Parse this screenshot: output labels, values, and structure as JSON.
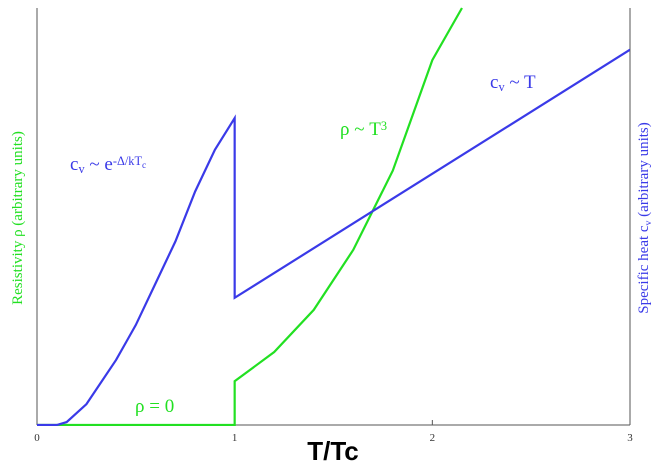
{
  "chart_data": {
    "type": "line",
    "xlabel": "T/Tc",
    "ylabel": [
      {
        "text": "Resistivity ρ (arbitrary units)"
      }
    ],
    "y2label": [
      {
        "text": "Specific heat c"
      },
      {
        "text": "v",
        "shift": "sub"
      },
      {
        "text": " (arbitrary units)"
      }
    ],
    "xlim": [
      0,
      3
    ],
    "ylim": [
      0,
      1
    ],
    "y2lim": [
      0,
      1
    ],
    "xticks": [
      0,
      1,
      2,
      3
    ],
    "series": [
      {
        "color": "#22e022",
        "axis": "y",
        "x": [
          0,
          1,
          1,
          1.2,
          1.4,
          1.6,
          1.8,
          2.0,
          2.15
        ],
        "values": [
          0,
          0,
          0.105,
          0.175,
          0.276,
          0.42,
          0.61,
          0.875,
          1.0
        ]
      },
      {
        "color": "#3a3ae8",
        "axis": "y2",
        "x": [
          0,
          0.1,
          0.15,
          0.25,
          0.4,
          0.5,
          0.6,
          0.7,
          0.8,
          0.9,
          1.0,
          1.0,
          3.0
        ],
        "values": [
          0,
          0,
          0.007,
          0.05,
          0.156,
          0.24,
          0.34,
          0.44,
          0.56,
          0.66,
          0.736,
          0.305,
          0.9
        ]
      }
    ],
    "annotations": [
      {
        "series": 1,
        "parts": [
          {
            "text": "c"
          },
          {
            "text": "v",
            "shift": "sub"
          },
          {
            "text": " ~ e"
          },
          {
            "text": "-Δ/kT",
            "shift": "sup"
          },
          {
            "text": "c",
            "shift": "subsup"
          }
        ]
      },
      {
        "series": 0,
        "parts": [
          {
            "text": "ρ ~ T"
          },
          {
            "text": "3",
            "shift": "sup"
          }
        ]
      },
      {
        "series": 1,
        "parts": [
          {
            "text": "c"
          },
          {
            "text": "v",
            "shift": "sub"
          },
          {
            "text": " ~ T"
          }
        ]
      },
      {
        "series": 0,
        "parts": [
          {
            "text": "ρ = 0"
          }
        ]
      }
    ]
  }
}
